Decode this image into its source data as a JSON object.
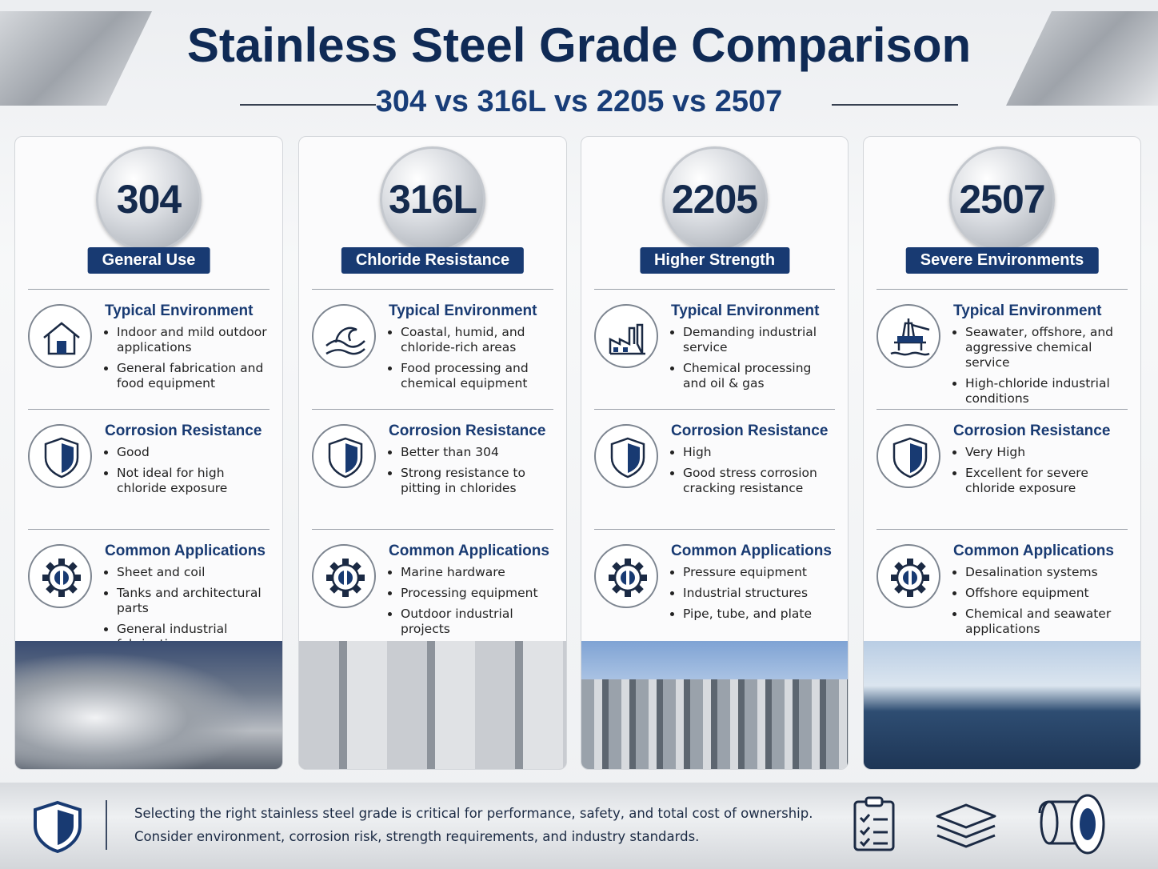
{
  "header": {
    "title": "Stainless Steel Grade Comparison",
    "subtitle": "304 vs 316L vs 2205 vs 2507"
  },
  "grades": [
    {
      "grade": "304",
      "tagline": "General Use",
      "sections": [
        {
          "heading": "Typical Environment",
          "items": [
            "Indoor and mild outdoor applications",
            "General fabrication and food equipment"
          ]
        },
        {
          "heading": "Corrosion Resistance",
          "items": [
            "Good",
            "Not ideal for high chloride exposure"
          ]
        },
        {
          "heading": "Common Applications",
          "items": [
            "Sheet and coil",
            "Tanks and architectural parts",
            "General industrial fabrication"
          ]
        }
      ]
    },
    {
      "grade": "316L",
      "tagline": "Chloride Resistance",
      "sections": [
        {
          "heading": "Typical Environment",
          "items": [
            "Coastal, humid, and chloride-rich areas",
            "Food processing and chemical equipment"
          ]
        },
        {
          "heading": "Corrosion Resistance",
          "items": [
            "Better than 304",
            "Strong resistance to pitting in chlorides"
          ]
        },
        {
          "heading": "Common Applications",
          "items": [
            "Marine hardware",
            "Processing equipment",
            "Outdoor industrial projects"
          ]
        }
      ]
    },
    {
      "grade": "2205",
      "tagline": "Higher Strength",
      "sections": [
        {
          "heading": "Typical Environment",
          "items": [
            "Demanding industrial service",
            "Chemical processing and oil & gas"
          ]
        },
        {
          "heading": "Corrosion Resistance",
          "items": [
            "High",
            "Good stress corrosion cracking resistance"
          ]
        },
        {
          "heading": "Common Applications",
          "items": [
            "Pressure equipment",
            "Industrial structures",
            "Pipe, tube, and plate"
          ]
        }
      ]
    },
    {
      "grade": "2507",
      "tagline": "Severe Environments",
      "sections": [
        {
          "heading": "Typical Environment",
          "items": [
            "Seawater, offshore, and aggressive chemical service",
            "High-chloride industrial conditions"
          ]
        },
        {
          "heading": "Corrosion Resistance",
          "items": [
            "Very High",
            "Excellent for severe chloride exposure"
          ]
        },
        {
          "heading": "Common Applications",
          "items": [
            "Desalination systems",
            "Offshore equipment",
            "Chemical and seawater applications"
          ]
        }
      ]
    }
  ],
  "footer": {
    "lines": [
      "Selecting the right stainless steel grade is critical for performance, safety, and total cost of ownership.",
      "Consider environment, corrosion risk, strength requirements, and industry standards."
    ]
  }
}
